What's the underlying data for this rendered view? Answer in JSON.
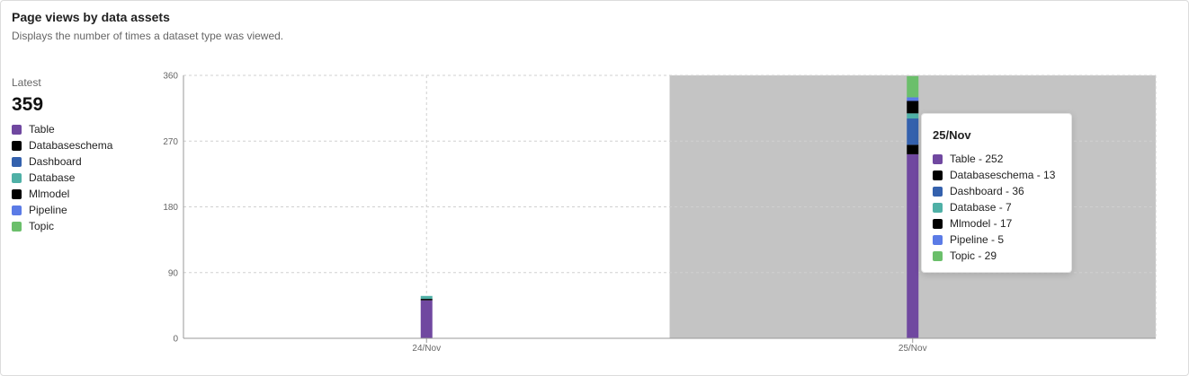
{
  "card": {
    "title": "Page views by data assets",
    "subtitle": "Displays the number of times a dataset type was viewed."
  },
  "summary": {
    "latest_label": "Latest",
    "latest_value": "359"
  },
  "legend": [
    {
      "label": "Table",
      "color": "#7048a0"
    },
    {
      "label": "Databaseschema",
      "color": "#000000"
    },
    {
      "label": "Dashboard",
      "color": "#3461ad"
    },
    {
      "label": "Database",
      "color": "#4fb0a6"
    },
    {
      "label": "Mlmodel",
      "color": "#000000"
    },
    {
      "label": "Pipeline",
      "color": "#5b7be6"
    },
    {
      "label": "Topic",
      "color": "#6bbf6b"
    }
  ],
  "tooltip": {
    "title": "25/Nov",
    "items": [
      {
        "label": "Table - 252",
        "color": "#7048a0"
      },
      {
        "label": "Databaseschema - 13",
        "color": "#000000"
      },
      {
        "label": "Dashboard - 36",
        "color": "#3461ad"
      },
      {
        "label": "Database - 7",
        "color": "#4fb0a6"
      },
      {
        "label": "Mlmodel - 17",
        "color": "#000000"
      },
      {
        "label": "Pipeline - 5",
        "color": "#5b7be6"
      },
      {
        "label": "Topic - 29",
        "color": "#6bbf6b"
      }
    ]
  },
  "chart_data": {
    "type": "bar",
    "stacked": true,
    "title": "",
    "xlabel": "",
    "ylabel": "",
    "categories": [
      "24/Nov",
      "25/Nov"
    ],
    "ylim": [
      0,
      360
    ],
    "yticks": [
      0,
      90,
      180,
      270,
      360
    ],
    "grid": true,
    "highlighted_category": "25/Nov",
    "highlight_color": "#c4c4c4",
    "series": [
      {
        "name": "Table",
        "color": "#7048a0",
        "values": [
          52,
          252
        ]
      },
      {
        "name": "Databaseschema",
        "color": "#000000",
        "values": [
          2,
          13
        ]
      },
      {
        "name": "Dashboard",
        "color": "#3461ad",
        "values": [
          0,
          36
        ]
      },
      {
        "name": "Database",
        "color": "#4fb0a6",
        "values": [
          4,
          7
        ]
      },
      {
        "name": "Mlmodel",
        "color": "#000000",
        "values": [
          0,
          17
        ]
      },
      {
        "name": "Pipeline",
        "color": "#5b7be6",
        "values": [
          0,
          5
        ]
      },
      {
        "name": "Topic",
        "color": "#6bbf6b",
        "values": [
          0,
          29
        ]
      }
    ]
  }
}
